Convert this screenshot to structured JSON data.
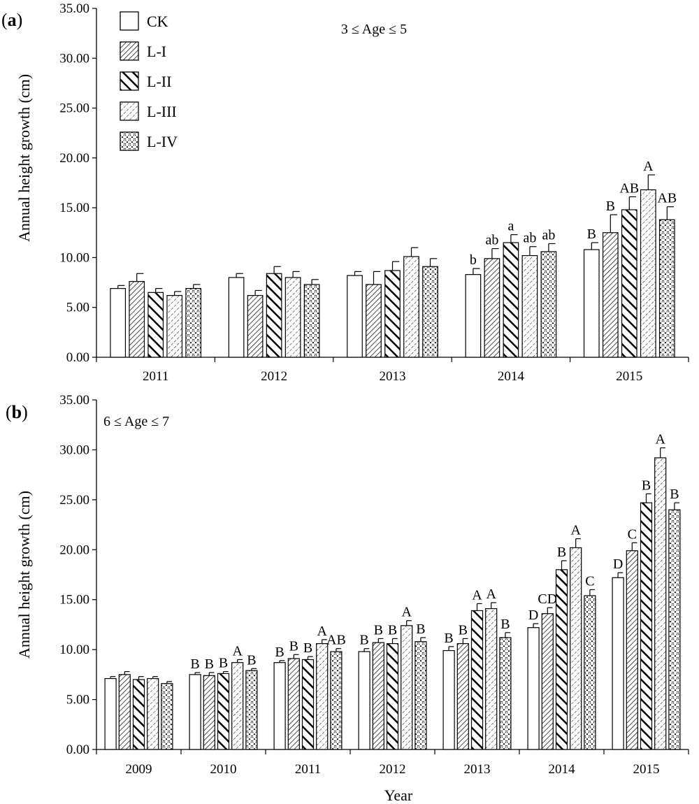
{
  "figure": {
    "xlabel": "Year",
    "ylabel": "Annual height growth (cm)"
  },
  "colors": {
    "stroke": "#000000",
    "fill": "#ffffff"
  },
  "legend": {
    "entries": [
      {
        "label": "CK",
        "pattern": "none"
      },
      {
        "label": "L-I",
        "pattern": "fine-diagonal"
      },
      {
        "label": "L-II",
        "pattern": "bold-diagonal"
      },
      {
        "label": "L-III",
        "pattern": "dashed-dots"
      },
      {
        "label": "L-IV",
        "pattern": "crosshatch"
      }
    ]
  },
  "chart_data": [
    {
      "type": "bar",
      "panel_label": "a",
      "subtitle": "3 ≤ Age ≤ 5",
      "ylabel": "Annual height growth (cm)",
      "ylim": [
        0,
        35
      ],
      "yticks": [
        "0.00",
        "5.00",
        "10.00",
        "15.00",
        "20.00",
        "25.00",
        "30.00",
        "35.00"
      ],
      "categories": [
        "2011",
        "2012",
        "2013",
        "2014",
        "2015"
      ],
      "series": [
        {
          "name": "CK",
          "values": [
            6.9,
            8.0,
            8.2,
            8.3,
            10.8
          ],
          "errors": [
            0.3,
            0.4,
            0.4,
            0.6,
            0.7
          ],
          "labels": [
            "",
            "",
            "",
            "b",
            "B"
          ]
        },
        {
          "name": "L-I",
          "values": [
            7.6,
            6.2,
            7.3,
            9.9,
            12.5
          ],
          "errors": [
            0.8,
            0.5,
            1.3,
            1.0,
            1.8
          ],
          "labels": [
            "",
            "",
            "",
            "ab",
            "B"
          ]
        },
        {
          "name": "L-II",
          "values": [
            6.5,
            8.4,
            8.7,
            11.5,
            14.8
          ],
          "errors": [
            0.4,
            0.7,
            0.9,
            0.8,
            1.3
          ],
          "labels": [
            "",
            "",
            "",
            "a",
            "AB"
          ]
        },
        {
          "name": "L-III",
          "values": [
            6.2,
            8.0,
            10.1,
            10.2,
            16.8
          ],
          "errors": [
            0.4,
            0.6,
            0.9,
            0.9,
            1.5
          ],
          "labels": [
            "",
            "",
            "",
            "ab",
            "A"
          ]
        },
        {
          "name": "L-IV",
          "values": [
            6.9,
            7.3,
            9.1,
            10.6,
            13.8
          ],
          "errors": [
            0.4,
            0.5,
            0.8,
            0.8,
            1.3
          ],
          "labels": [
            "",
            "",
            "",
            "ab",
            "AB"
          ]
        }
      ]
    },
    {
      "type": "bar",
      "panel_label": "b",
      "subtitle": "6 ≤ Age ≤ 7",
      "ylabel": "Annual height growth (cm)",
      "xlabel": "Year",
      "ylim": [
        0,
        35
      ],
      "yticks": [
        "0.00",
        "5.00",
        "10.00",
        "15.00",
        "20.00",
        "25.00",
        "30.00",
        "35.00"
      ],
      "categories": [
        "2009",
        "2010",
        "2011",
        "2012",
        "2013",
        "2014",
        "2015"
      ],
      "series": [
        {
          "name": "CK",
          "values": [
            7.1,
            7.5,
            8.7,
            9.8,
            9.9,
            12.2,
            17.2
          ],
          "errors": [
            0.2,
            0.2,
            0.2,
            0.3,
            0.4,
            0.4,
            0.5
          ],
          "labels": [
            "",
            "B",
            "B",
            "B",
            "B",
            "D",
            "D"
          ]
        },
        {
          "name": "L-I",
          "values": [
            7.5,
            7.4,
            9.1,
            10.7,
            10.6,
            13.6,
            19.9
          ],
          "errors": [
            0.3,
            0.3,
            0.4,
            0.4,
            0.5,
            0.6,
            0.8
          ],
          "labels": [
            "",
            "B",
            "B",
            "B",
            "B",
            "CD",
            "C"
          ]
        },
        {
          "name": "L-II",
          "values": [
            7.0,
            7.6,
            9.0,
            10.6,
            13.9,
            18.0,
            24.7
          ],
          "errors": [
            0.3,
            0.2,
            0.3,
            0.5,
            0.7,
            0.9,
            0.9
          ],
          "labels": [
            "",
            "B",
            "B",
            "B",
            "A",
            "B",
            "B"
          ]
        },
        {
          "name": "L-III",
          "values": [
            7.1,
            8.7,
            10.6,
            12.4,
            14.1,
            20.2,
            29.2
          ],
          "errors": [
            0.2,
            0.3,
            0.4,
            0.5,
            0.6,
            0.9,
            1.0
          ],
          "labels": [
            "",
            "A",
            "A",
            "A",
            "A",
            "A",
            "A"
          ]
        },
        {
          "name": "L-IV",
          "values": [
            6.6,
            7.9,
            9.8,
            10.8,
            11.2,
            15.4,
            24.0
          ],
          "errors": [
            0.2,
            0.2,
            0.3,
            0.4,
            0.5,
            0.6,
            0.7
          ],
          "labels": [
            "",
            "B",
            "AB",
            "B",
            "B",
            "C",
            "B"
          ]
        }
      ]
    }
  ]
}
